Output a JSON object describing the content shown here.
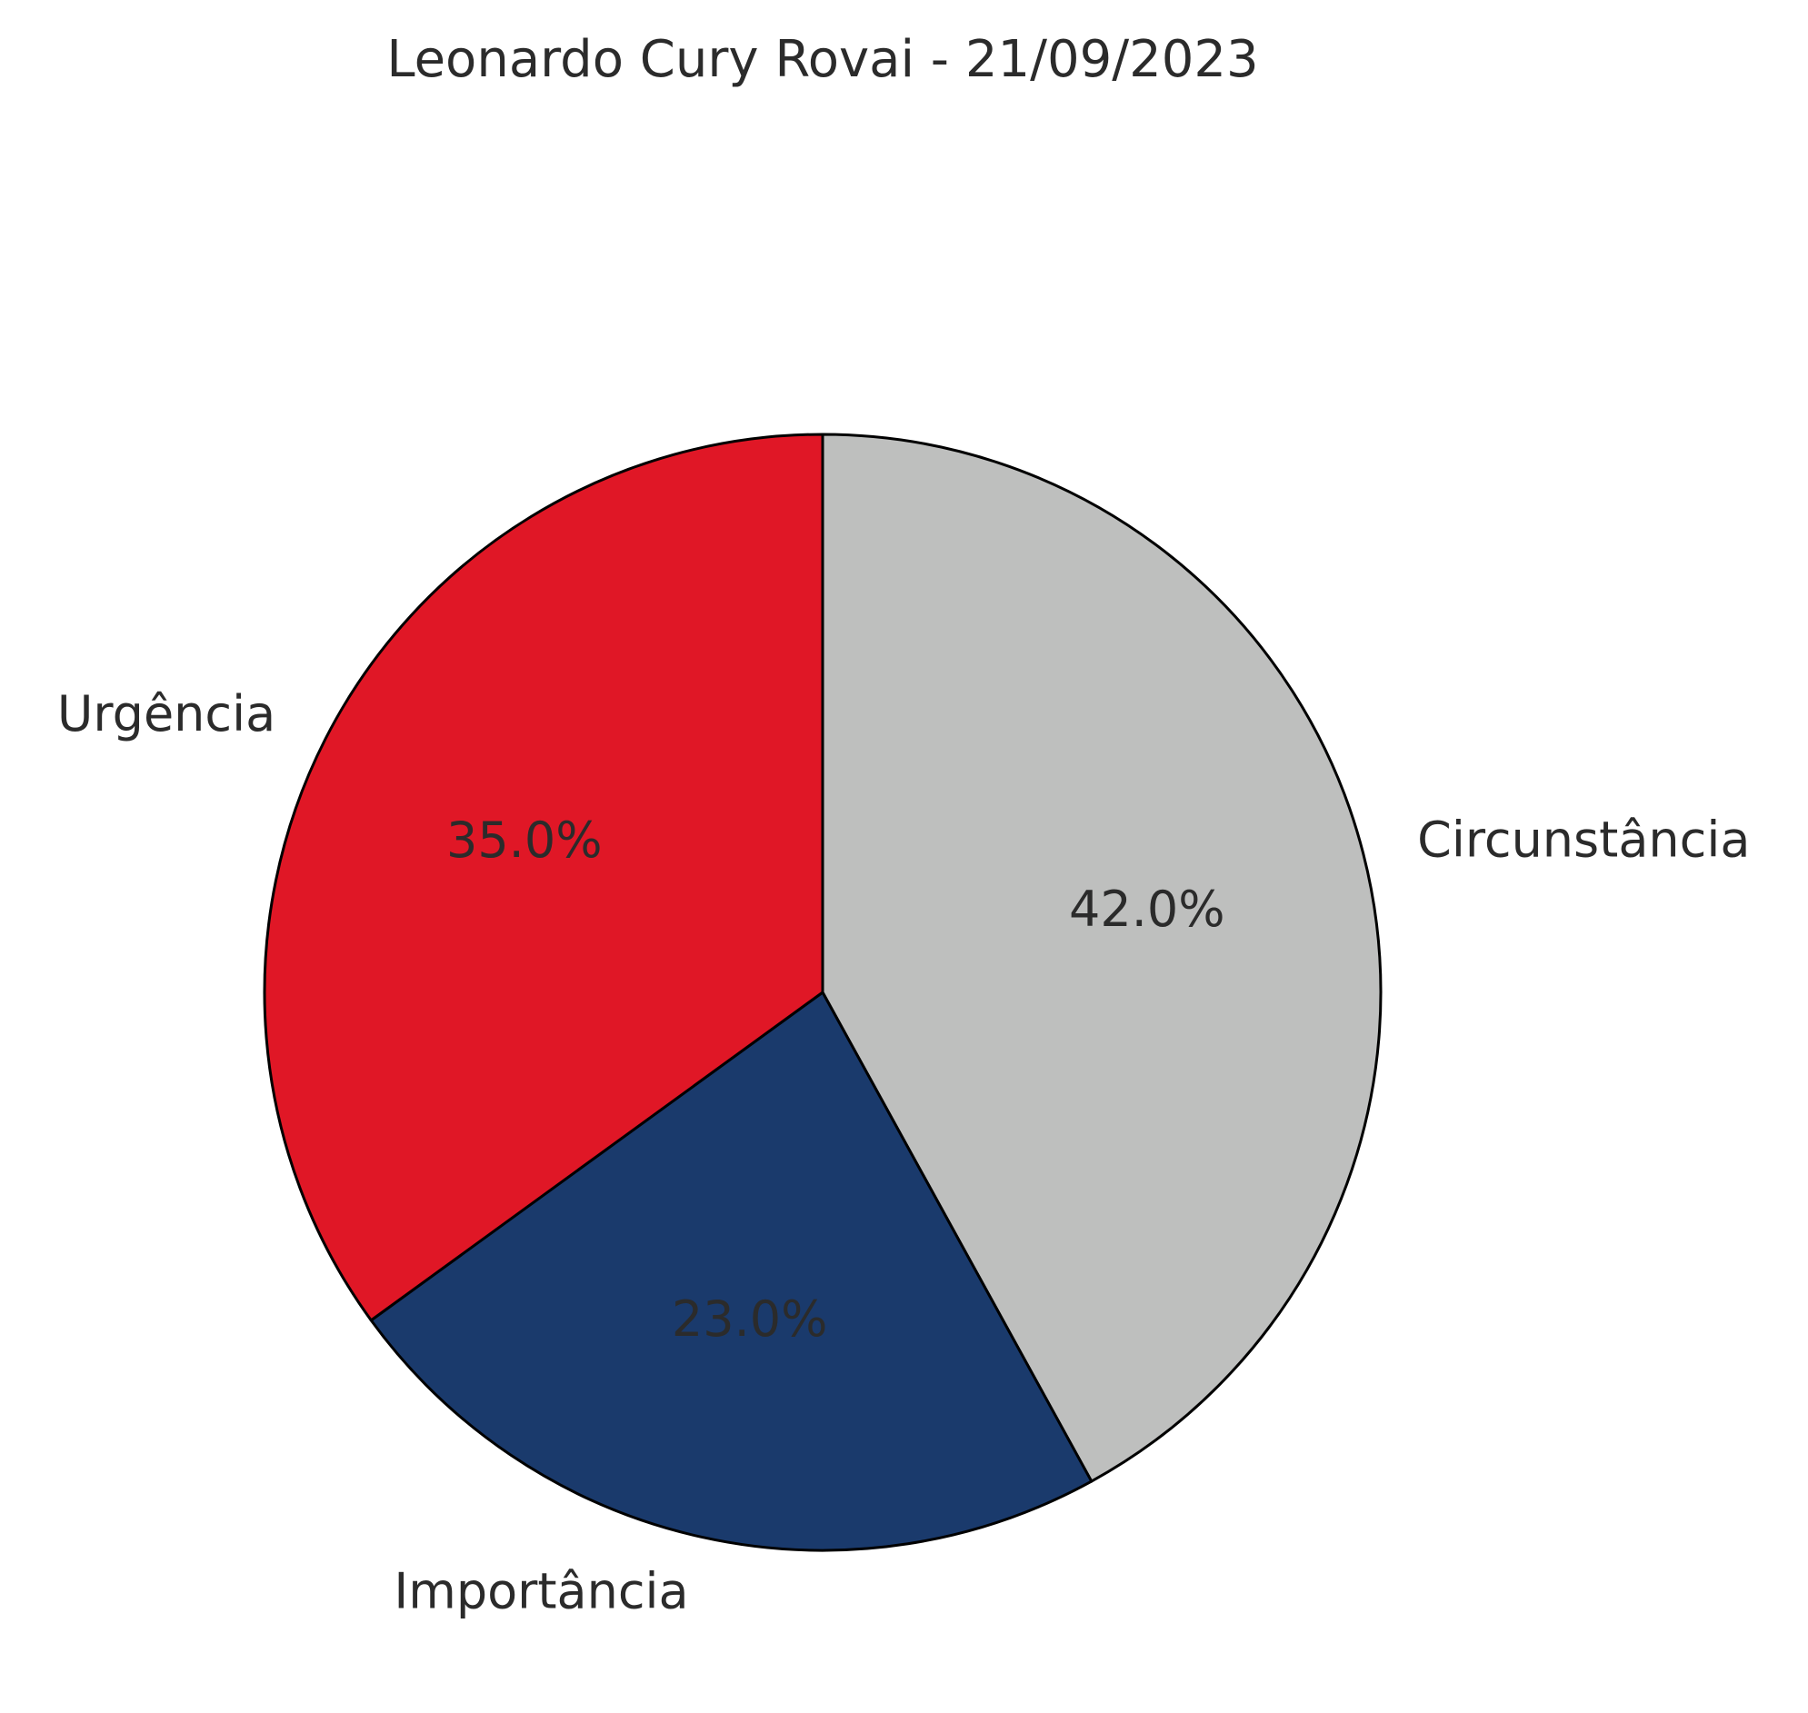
{
  "chart_data": {
    "type": "pie",
    "title": "Leonardo Cury Rovai - 21/09/2023",
    "slices": [
      {
        "label": "Circunstância",
        "value": 42.0,
        "pct_label": "42.0%",
        "color": "#bebfbe"
      },
      {
        "label": "Importância",
        "value": 23.0,
        "pct_label": "23.0%",
        "color": "#1a3a6c"
      },
      {
        "label": "Urgência",
        "value": 35.0,
        "pct_label": "35.0%",
        "color": "#e01726"
      }
    ],
    "start_angle_deg": 90,
    "direction": "clockwise",
    "edge_color": "#000000",
    "legend": "none"
  }
}
